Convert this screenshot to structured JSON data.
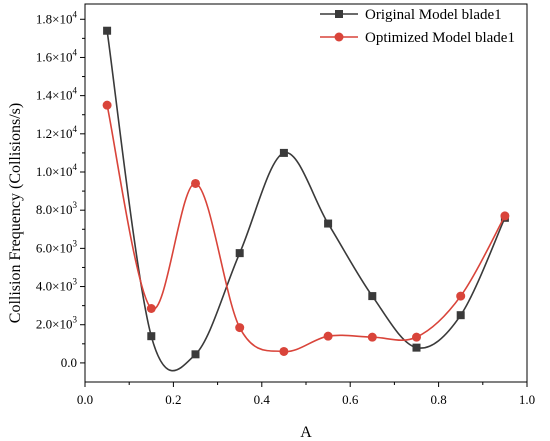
{
  "chart_data": {
    "type": "line",
    "title": "",
    "xlabel": "A",
    "ylabel": "Collision Frequency (Collisions/s)",
    "xlim": [
      0,
      1.0
    ],
    "ylim": [
      -1000,
      18800
    ],
    "x_ticks": [
      "0.0",
      "0.2",
      "0.4",
      "0.6",
      "0.8",
      "1.0"
    ],
    "x_tick_values": [
      0,
      0.2,
      0.4,
      0.6,
      0.8,
      1.0
    ],
    "y_tick_values": [
      0,
      2000,
      4000,
      6000,
      8000,
      10000,
      12000,
      14000,
      16000,
      18000
    ],
    "y_ticks": [
      {
        "mantissa": "0.0",
        "exp": ""
      },
      {
        "mantissa": "2.0×10",
        "exp": "3"
      },
      {
        "mantissa": "4.0×10",
        "exp": "3"
      },
      {
        "mantissa": "6.0×10",
        "exp": "3"
      },
      {
        "mantissa": "8.0×10",
        "exp": "3"
      },
      {
        "mantissa": "1.0×10",
        "exp": "4"
      },
      {
        "mantissa": "1.2×10",
        "exp": "4"
      },
      {
        "mantissa": "1.4×10",
        "exp": "4"
      },
      {
        "mantissa": "1.6×10",
        "exp": "4"
      },
      {
        "mantissa": "1.8×10",
        "exp": "4"
      }
    ],
    "legend_position": "top-right",
    "grid": false,
    "series": [
      {
        "name": "Original Model blade1",
        "color": "#3a3a3a",
        "marker": "square",
        "x": [
          0.05,
          0.15,
          0.25,
          0.35,
          0.45,
          0.55,
          0.65,
          0.75,
          0.85,
          0.95
        ],
        "y": [
          17400,
          1400,
          450,
          5750,
          11000,
          7300,
          3500,
          800,
          2500,
          7600
        ]
      },
      {
        "name": "Optimized Model blade1",
        "color": "#d9443a",
        "marker": "circle",
        "x": [
          0.05,
          0.15,
          0.25,
          0.35,
          0.45,
          0.55,
          0.65,
          0.75,
          0.85,
          0.95
        ],
        "y": [
          13500,
          2850,
          9400,
          1850,
          600,
          1400,
          1350,
          1350,
          3500,
          7700
        ]
      }
    ]
  }
}
